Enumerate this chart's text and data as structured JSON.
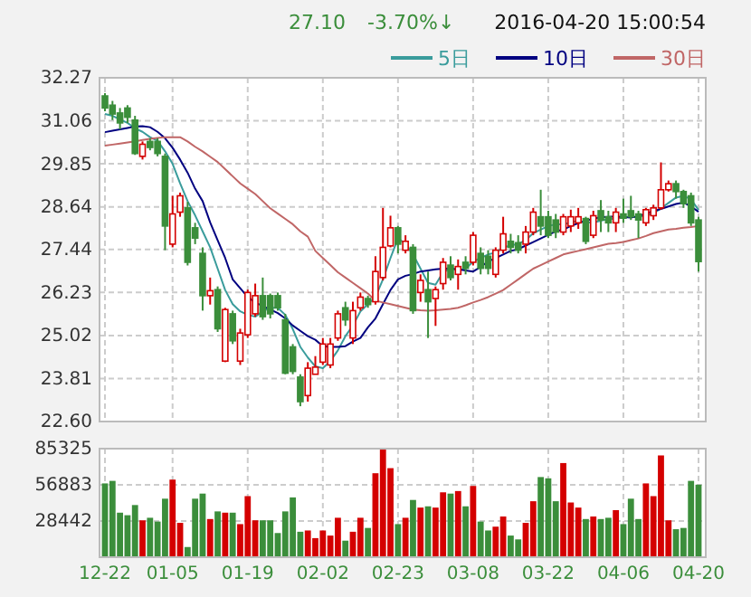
{
  "chart_data": [
    {
      "type": "candlestick",
      "annotations": [
        "27.10",
        "-3.70%↓",
        "2016-04-20 15:00:54"
      ],
      "categories": [
        null,
        null,
        null,
        null,
        null,
        null,
        null,
        null,
        null,
        null,
        null,
        null,
        null,
        null,
        null,
        null,
        null,
        null,
        null,
        null,
        null,
        null,
        null,
        null,
        null,
        null,
        null,
        null,
        null,
        null,
        null,
        null,
        null,
        null,
        null,
        null,
        null,
        null,
        null,
        null,
        null,
        null,
        null,
        null,
        null,
        null,
        null,
        null,
        null,
        null,
        null,
        null,
        null,
        null,
        null,
        null,
        null,
        null,
        null,
        null,
        null,
        null,
        null,
        null,
        null,
        null,
        null,
        null,
        null,
        null,
        null,
        null,
        null,
        null,
        null,
        null,
        null,
        null,
        null,
        null
      ],
      "ohlc": [
        [
          31.76,
          31.84,
          31.33,
          31.42
        ],
        [
          31.5,
          31.62,
          31.08,
          31.25
        ],
        [
          31.28,
          31.42,
          30.82,
          31.0
        ],
        [
          31.42,
          31.5,
          31.0,
          31.16
        ],
        [
          31.08,
          31.2,
          30.1,
          30.14
        ],
        [
          30.06,
          30.48,
          29.97,
          30.4
        ],
        [
          30.48,
          30.57,
          30.23,
          30.31
        ],
        [
          30.48,
          30.57,
          30.06,
          30.14
        ],
        [
          30.06,
          30.14,
          27.42,
          28.1
        ],
        [
          27.59,
          28.95,
          27.5,
          28.44
        ],
        [
          28.49,
          29.04,
          28.36,
          28.95
        ],
        [
          28.61,
          28.78,
          26.99,
          27.08
        ],
        [
          28.05,
          28.19,
          27.59,
          27.76
        ],
        [
          27.33,
          27.5,
          25.72,
          26.14
        ],
        [
          26.14,
          26.65,
          25.89,
          26.28
        ],
        [
          26.31,
          26.4,
          25.12,
          25.21
        ],
        [
          24.3,
          25.8,
          24.27,
          25.75
        ],
        [
          25.63,
          25.72,
          24.78,
          24.87
        ],
        [
          24.3,
          25.21,
          24.19,
          25.09
        ],
        [
          25.04,
          26.31,
          24.95,
          26.23
        ],
        [
          25.63,
          26.48,
          25.55,
          26.14
        ],
        [
          26.14,
          26.65,
          25.46,
          25.55
        ],
        [
          26.14,
          26.2,
          25.5,
          25.63
        ],
        [
          26.14,
          26.23,
          25.72,
          25.8
        ],
        [
          25.46,
          25.63,
          23.93,
          23.96
        ],
        [
          24.7,
          24.78,
          23.93,
          24.01
        ],
        [
          23.85,
          23.93,
          23.03,
          23.16
        ],
        [
          23.33,
          24.27,
          23.16,
          24.1
        ],
        [
          23.93,
          24.44,
          23.93,
          24.13
        ],
        [
          24.27,
          24.95,
          24.19,
          24.78
        ],
        [
          24.19,
          24.95,
          24.1,
          24.78
        ],
        [
          24.95,
          25.72,
          24.87,
          25.63
        ],
        [
          25.8,
          25.97,
          25.29,
          25.46
        ],
        [
          24.95,
          25.97,
          24.78,
          25.72
        ],
        [
          25.8,
          26.23,
          25.72,
          26.1
        ],
        [
          26.06,
          26.14,
          25.8,
          25.89
        ],
        [
          25.97,
          27.25,
          25.89,
          26.82
        ],
        [
          26.65,
          28.61,
          26.57,
          27.5
        ],
        [
          27.54,
          28.39,
          27.5,
          28.05
        ],
        [
          28.05,
          28.1,
          27.33,
          27.59
        ],
        [
          27.42,
          27.84,
          27.33,
          27.67
        ],
        [
          27.5,
          27.59,
          25.63,
          25.72
        ],
        [
          26.23,
          26.74,
          25.97,
          26.57
        ],
        [
          26.31,
          26.82,
          24.95,
          25.97
        ],
        [
          26.06,
          26.4,
          25.29,
          26.31
        ],
        [
          26.48,
          27.2,
          26.31,
          27.08
        ],
        [
          27.0,
          27.25,
          26.57,
          26.65
        ],
        [
          26.74,
          27.16,
          26.31,
          26.96
        ],
        [
          27.08,
          27.25,
          26.74,
          26.91
        ],
        [
          27.08,
          27.93,
          26.99,
          27.84
        ],
        [
          27.33,
          27.5,
          26.74,
          26.91
        ],
        [
          27.25,
          27.42,
          26.74,
          26.91
        ],
        [
          26.74,
          27.5,
          26.65,
          27.42
        ],
        [
          27.42,
          28.36,
          27.33,
          27.88
        ],
        [
          27.67,
          27.88,
          27.33,
          27.5
        ],
        [
          27.63,
          27.84,
          27.33,
          27.42
        ],
        [
          27.59,
          28.1,
          27.33,
          27.93
        ],
        [
          27.93,
          28.61,
          27.84,
          28.49
        ],
        [
          28.36,
          29.12,
          27.84,
          28.1
        ],
        [
          28.36,
          28.53,
          27.76,
          27.84
        ],
        [
          28.27,
          28.44,
          27.76,
          27.93
        ],
        [
          27.93,
          28.44,
          27.84,
          28.36
        ],
        [
          28.1,
          28.56,
          27.93,
          28.36
        ],
        [
          28.19,
          28.61,
          28.02,
          28.36
        ],
        [
          28.31,
          28.36,
          27.59,
          27.67
        ],
        [
          27.84,
          28.53,
          27.76,
          28.39
        ],
        [
          28.53,
          28.83,
          27.93,
          28.27
        ],
        [
          28.36,
          28.53,
          27.93,
          28.19
        ],
        [
          28.19,
          28.61,
          27.93,
          28.49
        ],
        [
          28.44,
          28.87,
          28.19,
          28.32
        ],
        [
          28.53,
          28.95,
          28.27,
          28.36
        ],
        [
          28.44,
          28.53,
          27.76,
          28.27
        ],
        [
          28.19,
          28.61,
          28.1,
          28.56
        ],
        [
          28.39,
          28.7,
          28.27,
          28.61
        ],
        [
          28.61,
          29.89,
          28.56,
          29.12
        ],
        [
          29.12,
          29.38,
          29.07,
          29.29
        ],
        [
          29.29,
          29.38,
          28.87,
          29.07
        ],
        [
          29.07,
          29.12,
          28.61,
          28.73
        ],
        [
          28.95,
          29.04,
          28.1,
          28.19
        ],
        [
          28.27,
          28.36,
          26.82,
          27.1
        ]
      ],
      "colors": [
        "#3b8e3b",
        "#3b8e3b",
        "#3b8e3b",
        "#3b8e3b",
        "#3b8e3b",
        "#d40000",
        "#3b8e3b",
        "#3b8e3b",
        "#3b8e3b",
        "#d40000",
        "#d40000",
        "#3b8e3b",
        "#3b8e3b",
        "#3b8e3b",
        "#d40000",
        "#3b8e3b",
        "#d40000",
        "#3b8e3b",
        "#d40000",
        "#d40000",
        "#d40000",
        "#3b8e3b",
        "#3b8e3b",
        "#3b8e3b",
        "#3b8e3b",
        "#3b8e3b",
        "#3b8e3b",
        "#d40000",
        "#d40000",
        "#d40000",
        "#d40000",
        "#d40000",
        "#3b8e3b",
        "#d40000",
        "#d40000",
        "#3b8e3b",
        "#d40000",
        "#d40000",
        "#d40000",
        "#3b8e3b",
        "#d40000",
        "#3b8e3b",
        "#d40000",
        "#3b8e3b",
        "#d40000",
        "#d40000",
        "#3b8e3b",
        "#d40000",
        "#3b8e3b",
        "#d40000",
        "#3b8e3b",
        "#3b8e3b",
        "#d40000",
        "#d40000",
        "#3b8e3b",
        "#3b8e3b",
        "#d40000",
        "#d40000",
        "#3b8e3b",
        "#3b8e3b",
        "#3b8e3b",
        "#d40000",
        "#d40000",
        "#d40000",
        "#3b8e3b",
        "#d40000",
        "#3b8e3b",
        "#3b8e3b",
        "#d40000",
        "#3b8e3b",
        "#3b8e3b",
        "#3b8e3b",
        "#d40000",
        "#d40000",
        "#d40000",
        "#d40000",
        "#3b8e3b",
        "#3b8e3b",
        "#3b8e3b",
        "#3b8e3b"
      ],
      "series": [
        {
          "name": "5日",
          "type": "line",
          "color": "#3a9c9c",
          "values": [
            31.25,
            31.2,
            31.1,
            31.0,
            30.85,
            30.75,
            30.6,
            30.5,
            30.2,
            29.85,
            29.3,
            28.8,
            28.4,
            27.95,
            27.5,
            26.9,
            26.3,
            25.9,
            25.7,
            25.6,
            25.55,
            25.7,
            25.8,
            25.8,
            25.6,
            25.2,
            24.7,
            24.4,
            24.15,
            24.1,
            24.3,
            24.6,
            25.0,
            25.3,
            25.7,
            25.9,
            26.1,
            26.6,
            27.2,
            27.75,
            27.6,
            27.3,
            26.9,
            26.5,
            26.45,
            26.8,
            26.9,
            26.85,
            26.9,
            27.1,
            27.2,
            27.3,
            27.35,
            27.5,
            27.55,
            27.6,
            27.7,
            27.9,
            28.0,
            28.1,
            28.15,
            28.15,
            28.2,
            28.25,
            28.2,
            28.2,
            28.25,
            28.3,
            28.3,
            28.35,
            28.35,
            28.35,
            28.4,
            28.45,
            28.6,
            28.75,
            28.9,
            28.95,
            28.85,
            28.55
          ]
        },
        {
          "name": "10日",
          "type": "line",
          "color": "#000080",
          "values": [
            30.74,
            30.78,
            30.82,
            30.86,
            30.9,
            30.91,
            30.88,
            30.75,
            30.57,
            30.3,
            29.97,
            29.6,
            29.15,
            28.8,
            28.2,
            27.7,
            27.2,
            26.6,
            26.35,
            26.1,
            25.95,
            25.85,
            25.75,
            25.65,
            25.5,
            25.3,
            25.15,
            25.0,
            24.9,
            24.72,
            24.7,
            24.7,
            24.72,
            24.85,
            24.95,
            25.25,
            25.5,
            25.9,
            26.3,
            26.6,
            26.7,
            26.75,
            26.82,
            26.85,
            26.88,
            26.9,
            26.91,
            26.88,
            26.85,
            26.82,
            26.95,
            27.1,
            27.2,
            27.3,
            27.4,
            27.45,
            27.55,
            27.65,
            27.75,
            27.85,
            27.95,
            28.0,
            28.1,
            28.18,
            28.25,
            28.3,
            28.35,
            28.36,
            28.37,
            28.35,
            28.34,
            28.38,
            28.45,
            28.52,
            28.58,
            28.65,
            28.72,
            28.76,
            28.65,
            28.5
          ]
        },
        {
          "name": "30日",
          "type": "line",
          "color": "#c06666",
          "values": [
            30.36,
            30.39,
            30.42,
            30.45,
            30.48,
            30.52,
            30.55,
            30.58,
            30.6,
            30.6,
            30.6,
            30.48,
            30.33,
            30.2,
            30.05,
            29.9,
            29.7,
            29.5,
            29.3,
            29.15,
            29.0,
            28.8,
            28.6,
            28.45,
            28.3,
            28.15,
            27.95,
            27.8,
            27.4,
            27.2,
            27.0,
            26.8,
            26.65,
            26.5,
            26.35,
            26.2,
            26.0,
            25.95,
            25.9,
            25.85,
            25.8,
            25.75,
            25.73,
            25.72,
            25.73,
            25.75,
            25.77,
            25.8,
            25.87,
            25.95,
            26.02,
            26.1,
            26.2,
            26.3,
            26.45,
            26.6,
            26.75,
            26.9,
            27.0,
            27.1,
            27.2,
            27.3,
            27.35,
            27.4,
            27.45,
            27.5,
            27.55,
            27.6,
            27.62,
            27.65,
            27.7,
            27.75,
            27.82,
            27.9,
            27.95,
            28.0,
            28.02,
            28.05,
            28.07,
            28.1
          ]
        }
      ],
      "ylim": [
        22.6,
        32.27
      ],
      "yticks": [
        {
          "value": 22.6,
          "label": "22.60"
        },
        23.81,
        25.02,
        26.23,
        27.44,
        28.64,
        29.85,
        31.06,
        32.27
      ],
      "grid": true,
      "legend": "top right"
    },
    {
      "type": "bar",
      "categories": [
        "12-22",
        null,
        null,
        null,
        null,
        null,
        null,
        null,
        null,
        "01-05",
        null,
        null,
        null,
        null,
        null,
        null,
        null,
        null,
        null,
        "01-19",
        null,
        null,
        null,
        null,
        null,
        null,
        null,
        null,
        null,
        "02-02",
        null,
        null,
        null,
        null,
        null,
        null,
        null,
        null,
        null,
        "02-23",
        null,
        null,
        null,
        null,
        null,
        null,
        null,
        null,
        null,
        "03-08",
        null,
        null,
        null,
        null,
        null,
        null,
        null,
        null,
        null,
        "03-22",
        null,
        null,
        null,
        null,
        null,
        null,
        null,
        null,
        null,
        "04-06",
        null,
        null,
        null,
        null,
        null,
        null,
        null,
        null,
        null,
        "04-20"
      ],
      "values": [
        58000,
        60000,
        35000,
        33000,
        41000,
        29000,
        31000,
        28000,
        46000,
        61000,
        27000,
        8000,
        46000,
        50000,
        30000,
        36000,
        35000,
        35000,
        26000,
        48000,
        29000,
        29000,
        29000,
        19000,
        36000,
        47000,
        20000,
        21000,
        15000,
        21000,
        17000,
        31000,
        13000,
        20000,
        31000,
        23000,
        66000,
        85000,
        70000,
        26000,
        31000,
        45000,
        39000,
        40000,
        39000,
        51000,
        50000,
        52000,
        40000,
        56000,
        28000,
        21000,
        24000,
        32000,
        17000,
        14000,
        27000,
        44000,
        63000,
        62000,
        44000,
        74000,
        43000,
        39000,
        30000,
        32000,
        30000,
        31000,
        37000,
        26000,
        46000,
        30000,
        58000,
        48000,
        80000,
        29000,
        22000,
        23000,
        60000,
        57000
      ],
      "colors": [
        "#3b8e3b",
        "#3b8e3b",
        "#3b8e3b",
        "#3b8e3b",
        "#3b8e3b",
        "#d40000",
        "#3b8e3b",
        "#3b8e3b",
        "#3b8e3b",
        "#d40000",
        "#d40000",
        "#3b8e3b",
        "#3b8e3b",
        "#3b8e3b",
        "#d40000",
        "#3b8e3b",
        "#d40000",
        "#3b8e3b",
        "#d40000",
        "#d40000",
        "#d40000",
        "#3b8e3b",
        "#3b8e3b",
        "#3b8e3b",
        "#3b8e3b",
        "#3b8e3b",
        "#3b8e3b",
        "#d40000",
        "#d40000",
        "#d40000",
        "#d40000",
        "#d40000",
        "#3b8e3b",
        "#d40000",
        "#d40000",
        "#3b8e3b",
        "#d40000",
        "#d40000",
        "#d40000",
        "#3b8e3b",
        "#d40000",
        "#3b8e3b",
        "#d40000",
        "#3b8e3b",
        "#d40000",
        "#d40000",
        "#3b8e3b",
        "#d40000",
        "#3b8e3b",
        "#d40000",
        "#3b8e3b",
        "#3b8e3b",
        "#d40000",
        "#d40000",
        "#3b8e3b",
        "#3b8e3b",
        "#d40000",
        "#d40000",
        "#3b8e3b",
        "#3b8e3b",
        "#3b8e3b",
        "#d40000",
        "#d40000",
        "#d40000",
        "#3b8e3b",
        "#d40000",
        "#3b8e3b",
        "#3b8e3b",
        "#d40000",
        "#3b8e3b",
        "#3b8e3b",
        "#3b8e3b",
        "#d40000",
        "#d40000",
        "#d40000",
        "#d40000",
        "#3b8e3b",
        "#3b8e3b",
        "#3b8e3b",
        "#3b8e3b"
      ],
      "ylim": [
        0,
        85325
      ],
      "yticks": [
        28442,
        56883,
        85325
      ],
      "grid": true
    }
  ]
}
